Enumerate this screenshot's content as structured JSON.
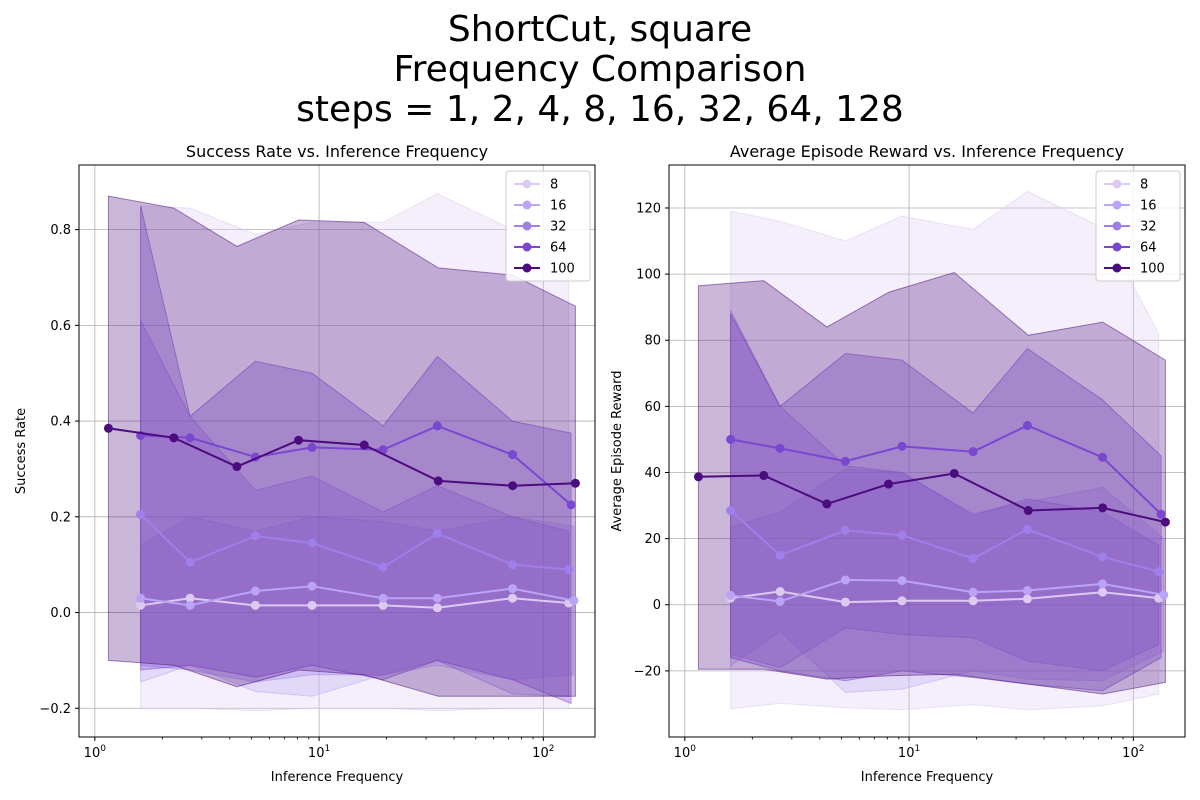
{
  "figure": {
    "suptitle_lines": [
      "ShortCut, square",
      "Frequency Comparison",
      "steps = 1, 2, 4, 8, 16, 32, 64, 128"
    ]
  },
  "chart_data": [
    {
      "type": "line",
      "title": "Success Rate vs. Inference Frequency",
      "xlabel": "Inference Frequency",
      "ylabel": "Success Rate",
      "xscale": "log",
      "xlim": [
        0.85,
        170
      ],
      "ylim": [
        -0.26,
        0.935
      ],
      "yticks": [
        -0.2,
        0.0,
        0.2,
        0.4,
        0.6,
        0.8
      ],
      "ytick_labels": [
        "−0.2",
        "0.0",
        "0.2",
        "0.4",
        "0.6",
        "0.8"
      ],
      "xticks": [
        1,
        10,
        100
      ],
      "grid": true,
      "legend_position": "top-right",
      "series": [
        {
          "name": "8",
          "color": "#dccaf2",
          "x": [
            1.6,
            2.66,
            5.2,
            9.3,
            19.3,
            33.7,
            72.9,
            129.8
          ],
          "y": [
            0.015,
            0.03,
            0.015,
            0.015,
            0.015,
            0.01,
            0.03,
            0.02
          ],
          "upper": [
            0.85,
            0.845,
            0.79,
            0.815,
            0.815,
            0.875,
            0.8,
            0.74
          ],
          "lower": [
            -0.2,
            -0.2,
            -0.205,
            -0.2,
            -0.2,
            -0.205,
            -0.2,
            -0.2
          ]
        },
        {
          "name": "16",
          "color": "#bba4f6",
          "x": [
            1.6,
            2.66,
            5.2,
            9.3,
            19.3,
            33.7,
            72.9,
            136.8
          ],
          "y": [
            0.03,
            0.015,
            0.045,
            0.055,
            0.03,
            0.03,
            0.05,
            0.025
          ],
          "upper": [
            0.14,
            0.2,
            0.17,
            0.2,
            0.19,
            0.17,
            0.2,
            0.18
          ],
          "lower": [
            -0.145,
            -0.11,
            -0.165,
            -0.175,
            -0.13,
            -0.11,
            -0.14,
            -0.13
          ]
        },
        {
          "name": "32",
          "color": "#9f7fea",
          "x": [
            1.6,
            2.66,
            5.2,
            9.3,
            19.3,
            33.7,
            72.9,
            129.8
          ],
          "y": [
            0.205,
            0.105,
            0.16,
            0.145,
            0.095,
            0.165,
            0.1,
            0.09
          ],
          "upper": [
            0.61,
            0.41,
            0.255,
            0.285,
            0.21,
            0.265,
            0.2,
            0.17
          ],
          "lower": [
            -0.11,
            -0.12,
            -0.145,
            -0.13,
            -0.13,
            -0.1,
            -0.17,
            -0.175
          ]
        },
        {
          "name": "64",
          "color": "#7a47d0",
          "x": [
            1.6,
            2.66,
            5.2,
            9.3,
            19.3,
            33.7,
            72.9,
            133.0
          ],
          "y": [
            0.37,
            0.365,
            0.325,
            0.345,
            0.34,
            0.39,
            0.33,
            0.225
          ],
          "upper": [
            0.85,
            0.41,
            0.525,
            0.5,
            0.39,
            0.535,
            0.4,
            0.375
          ],
          "lower": [
            -0.12,
            -0.11,
            -0.135,
            -0.11,
            -0.14,
            -0.1,
            -0.14,
            -0.19
          ]
        },
        {
          "name": "100",
          "color": "#4b0c7d",
          "x": [
            1.15,
            2.25,
            4.3,
            8.1,
            15.9,
            34.0,
            73.0,
            139.0
          ],
          "y": [
            0.385,
            0.365,
            0.305,
            0.36,
            0.35,
            0.275,
            0.265,
            0.27
          ],
          "upper": [
            0.87,
            0.845,
            0.765,
            0.82,
            0.815,
            0.72,
            0.705,
            0.64
          ],
          "lower": [
            -0.1,
            -0.11,
            -0.155,
            -0.12,
            -0.13,
            -0.175,
            -0.175,
            -0.175
          ]
        }
      ]
    },
    {
      "type": "line",
      "title": "Average Episode Reward vs. Inference Frequency",
      "xlabel": "Inference Frequency",
      "ylabel": "Average Episode Reward",
      "xscale": "log",
      "xlim": [
        0.85,
        170
      ],
      "ylim": [
        -40,
        133
      ],
      "yticks": [
        -20,
        0,
        20,
        40,
        60,
        80,
        100,
        120
      ],
      "ytick_labels": [
        "−20",
        "0",
        "20",
        "40",
        "60",
        "80",
        "100",
        "120"
      ],
      "xticks": [
        1,
        10,
        100
      ],
      "grid": true,
      "legend_position": "top-right",
      "series": [
        {
          "name": "8",
          "color": "#dccaf2",
          "x": [
            1.6,
            2.66,
            5.2,
            9.3,
            19.3,
            33.7,
            72.9,
            129.8
          ],
          "y": [
            2.0,
            4.0,
            0.8,
            1.2,
            1.2,
            1.8,
            3.8,
            2.0
          ],
          "upper": [
            119,
            116,
            110,
            117.5,
            113.5,
            125,
            114,
            82
          ],
          "lower": [
            -31.5,
            -29.8,
            -31.2,
            -31.7,
            -30.2,
            -31.8,
            -30.6,
            -27.0
          ]
        },
        {
          "name": "16",
          "color": "#bba4f6",
          "x": [
            1.6,
            2.66,
            5.2,
            9.3,
            19.3,
            33.7,
            72.9,
            136.8
          ],
          "y": [
            2.8,
            1.0,
            7.5,
            7.3,
            3.8,
            4.3,
            6.3,
            3.0
          ],
          "upper": [
            23.5,
            28,
            41,
            40,
            27.5,
            31,
            35.5,
            20
          ],
          "lower": [
            -18.5,
            -8,
            -26.5,
            -25.5,
            -20,
            -22.5,
            -23,
            -14
          ]
        },
        {
          "name": "32",
          "color": "#9f7fea",
          "x": [
            1.6,
            2.66,
            5.2,
            9.3,
            19.3,
            33.7,
            72.9,
            129.8
          ],
          "y": [
            28.5,
            15.0,
            22.5,
            21.0,
            14.0,
            22.8,
            14.5,
            10.0
          ],
          "upper": [
            89,
            60,
            42,
            40,
            27,
            32,
            28,
            18
          ],
          "lower": [
            -15,
            -19,
            -7,
            -9,
            -10,
            -17,
            -20,
            -12
          ]
        },
        {
          "name": "64",
          "color": "#7a47d0",
          "x": [
            1.6,
            2.66,
            5.2,
            9.3,
            19.3,
            33.7,
            72.9,
            133.0
          ],
          "y": [
            50.0,
            47.3,
            43.4,
            47.9,
            46.3,
            54.2,
            44.6,
            27.4
          ],
          "upper": [
            88,
            60,
            76,
            74,
            58,
            77.5,
            62,
            45
          ],
          "lower": [
            -16,
            -20,
            -23,
            -20,
            -22,
            -24,
            -26,
            -16
          ]
        },
        {
          "name": "100",
          "color": "#4b0c7d",
          "x": [
            1.15,
            2.25,
            4.3,
            8.1,
            15.9,
            34.0,
            73.0,
            139.0
          ],
          "y": [
            38.7,
            39.1,
            30.5,
            36.5,
            39.7,
            28.5,
            29.3,
            25.0
          ],
          "upper": [
            96.5,
            98,
            84,
            94.5,
            100.5,
            81.5,
            85.5,
            74
          ],
          "lower": [
            -19.5,
            -19.5,
            -22.5,
            -21.5,
            -21,
            -24,
            -27,
            -23.5
          ]
        }
      ]
    }
  ]
}
